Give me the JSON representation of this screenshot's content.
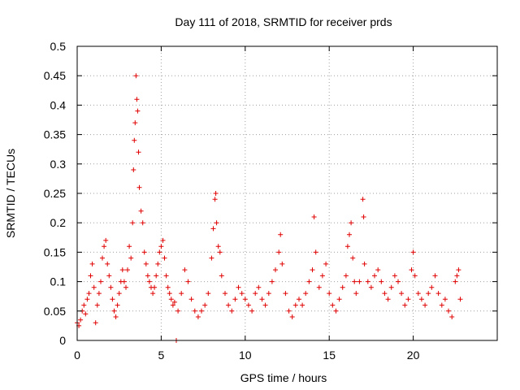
{
  "chart_data": {
    "type": "scatter",
    "title": "Day 111 of 2018, SRMTID for receiver prds",
    "xlabel": "GPS time / hours",
    "ylabel": "SRMTID / TECUs",
    "xlim": [
      0,
      25
    ],
    "ylim": [
      0,
      0.5
    ],
    "x_ticks": [
      0,
      5,
      10,
      15,
      20
    ],
    "x_tick_labels": [
      "0",
      "5",
      "10",
      "15",
      "20"
    ],
    "y_ticks": [
      0,
      0.05,
      0.1,
      0.15,
      0.2,
      0.25,
      0.3,
      0.35,
      0.4,
      0.45,
      0.5
    ],
    "y_tick_labels": [
      "0",
      "0.05",
      "0.1",
      "0.15",
      "0.2",
      "0.25",
      "0.3",
      "0.35",
      "0.4",
      "0.45",
      "0.5"
    ],
    "grid": true,
    "marker": "+",
    "color": "#e00000",
    "series": [
      {
        "name": "prds",
        "points": [
          [
            0.0,
            0.03
          ],
          [
            0.1,
            0.025
          ],
          [
            0.2,
            0.035
          ],
          [
            0.3,
            0.05
          ],
          [
            0.4,
            0.06
          ],
          [
            0.5,
            0.045
          ],
          [
            0.6,
            0.07
          ],
          [
            0.7,
            0.08
          ],
          [
            0.8,
            0.11
          ],
          [
            0.9,
            0.13
          ],
          [
            1.0,
            0.09
          ],
          [
            1.1,
            0.03
          ],
          [
            1.2,
            0.06
          ],
          [
            1.3,
            0.08
          ],
          [
            1.4,
            0.1
          ],
          [
            1.5,
            0.14
          ],
          [
            1.6,
            0.16
          ],
          [
            1.7,
            0.17
          ],
          [
            1.8,
            0.13
          ],
          [
            1.9,
            0.11
          ],
          [
            2.0,
            0.09
          ],
          [
            2.1,
            0.07
          ],
          [
            2.2,
            0.05
          ],
          [
            2.3,
            0.04
          ],
          [
            2.4,
            0.06
          ],
          [
            2.5,
            0.08
          ],
          [
            2.6,
            0.1
          ],
          [
            2.7,
            0.12
          ],
          [
            2.8,
            0.1
          ],
          [
            2.9,
            0.09
          ],
          [
            3.0,
            0.12
          ],
          [
            3.1,
            0.16
          ],
          [
            3.2,
            0.14
          ],
          [
            3.3,
            0.2
          ],
          [
            3.35,
            0.29
          ],
          [
            3.4,
            0.34
          ],
          [
            3.45,
            0.37
          ],
          [
            3.5,
            0.45
          ],
          [
            3.55,
            0.41
          ],
          [
            3.6,
            0.39
          ],
          [
            3.65,
            0.32
          ],
          [
            3.7,
            0.26
          ],
          [
            3.8,
            0.22
          ],
          [
            3.9,
            0.2
          ],
          [
            4.0,
            0.15
          ],
          [
            4.1,
            0.13
          ],
          [
            4.2,
            0.11
          ],
          [
            4.3,
            0.1
          ],
          [
            4.4,
            0.09
          ],
          [
            4.5,
            0.08
          ],
          [
            4.6,
            0.09
          ],
          [
            4.7,
            0.11
          ],
          [
            4.8,
            0.13
          ],
          [
            4.9,
            0.15
          ],
          [
            5.0,
            0.16
          ],
          [
            5.1,
            0.17
          ],
          [
            5.2,
            0.14
          ],
          [
            5.3,
            0.11
          ],
          [
            5.4,
            0.09
          ],
          [
            5.5,
            0.08
          ],
          [
            5.6,
            0.07
          ],
          [
            5.7,
            0.06
          ],
          [
            5.8,
            0.065
          ],
          [
            5.9,
            0.0
          ],
          [
            6.0,
            0.05
          ],
          [
            6.2,
            0.08
          ],
          [
            6.4,
            0.12
          ],
          [
            6.6,
            0.1
          ],
          [
            6.8,
            0.07
          ],
          [
            7.0,
            0.05
          ],
          [
            7.2,
            0.04
          ],
          [
            7.4,
            0.05
          ],
          [
            7.6,
            0.06
          ],
          [
            7.8,
            0.08
          ],
          [
            8.0,
            0.14
          ],
          [
            8.1,
            0.19
          ],
          [
            8.2,
            0.24
          ],
          [
            8.25,
            0.25
          ],
          [
            8.3,
            0.2
          ],
          [
            8.4,
            0.16
          ],
          [
            8.5,
            0.15
          ],
          [
            8.6,
            0.11
          ],
          [
            8.8,
            0.08
          ],
          [
            9.0,
            0.06
          ],
          [
            9.2,
            0.05
          ],
          [
            9.4,
            0.07
          ],
          [
            9.6,
            0.09
          ],
          [
            9.8,
            0.08
          ],
          [
            10.0,
            0.07
          ],
          [
            10.2,
            0.06
          ],
          [
            10.4,
            0.05
          ],
          [
            10.6,
            0.08
          ],
          [
            10.8,
            0.09
          ],
          [
            11.0,
            0.07
          ],
          [
            11.2,
            0.06
          ],
          [
            11.4,
            0.08
          ],
          [
            11.6,
            0.1
          ],
          [
            11.8,
            0.12
          ],
          [
            12.0,
            0.15
          ],
          [
            12.1,
            0.18
          ],
          [
            12.2,
            0.13
          ],
          [
            12.4,
            0.08
          ],
          [
            12.6,
            0.05
          ],
          [
            12.8,
            0.04
          ],
          [
            13.0,
            0.06
          ],
          [
            13.2,
            0.07
          ],
          [
            13.4,
            0.06
          ],
          [
            13.6,
            0.08
          ],
          [
            13.8,
            0.1
          ],
          [
            14.0,
            0.12
          ],
          [
            14.1,
            0.21
          ],
          [
            14.2,
            0.15
          ],
          [
            14.4,
            0.09
          ],
          [
            14.6,
            0.11
          ],
          [
            14.8,
            0.13
          ],
          [
            15.0,
            0.08
          ],
          [
            15.2,
            0.06
          ],
          [
            15.4,
            0.05
          ],
          [
            15.6,
            0.07
          ],
          [
            15.8,
            0.09
          ],
          [
            16.0,
            0.11
          ],
          [
            16.1,
            0.16
          ],
          [
            16.2,
            0.18
          ],
          [
            16.3,
            0.2
          ],
          [
            16.4,
            0.14
          ],
          [
            16.5,
            0.1
          ],
          [
            16.6,
            0.08
          ],
          [
            16.8,
            0.1
          ],
          [
            17.0,
            0.24
          ],
          [
            17.05,
            0.21
          ],
          [
            17.1,
            0.13
          ],
          [
            17.3,
            0.1
          ],
          [
            17.5,
            0.09
          ],
          [
            17.7,
            0.11
          ],
          [
            17.9,
            0.12
          ],
          [
            18.1,
            0.1
          ],
          [
            18.3,
            0.08
          ],
          [
            18.5,
            0.07
          ],
          [
            18.7,
            0.09
          ],
          [
            18.9,
            0.11
          ],
          [
            19.1,
            0.1
          ],
          [
            19.3,
            0.08
          ],
          [
            19.5,
            0.06
          ],
          [
            19.7,
            0.07
          ],
          [
            19.9,
            0.12
          ],
          [
            20.0,
            0.15
          ],
          [
            20.1,
            0.11
          ],
          [
            20.3,
            0.08
          ],
          [
            20.5,
            0.07
          ],
          [
            20.7,
            0.06
          ],
          [
            20.9,
            0.08
          ],
          [
            21.1,
            0.09
          ],
          [
            21.3,
            0.11
          ],
          [
            21.5,
            0.08
          ],
          [
            21.7,
            0.06
          ],
          [
            21.9,
            0.07
          ],
          [
            22.1,
            0.05
          ],
          [
            22.3,
            0.04
          ],
          [
            22.5,
            0.1
          ],
          [
            22.6,
            0.11
          ],
          [
            22.7,
            0.12
          ],
          [
            22.8,
            0.07
          ]
        ]
      }
    ]
  }
}
